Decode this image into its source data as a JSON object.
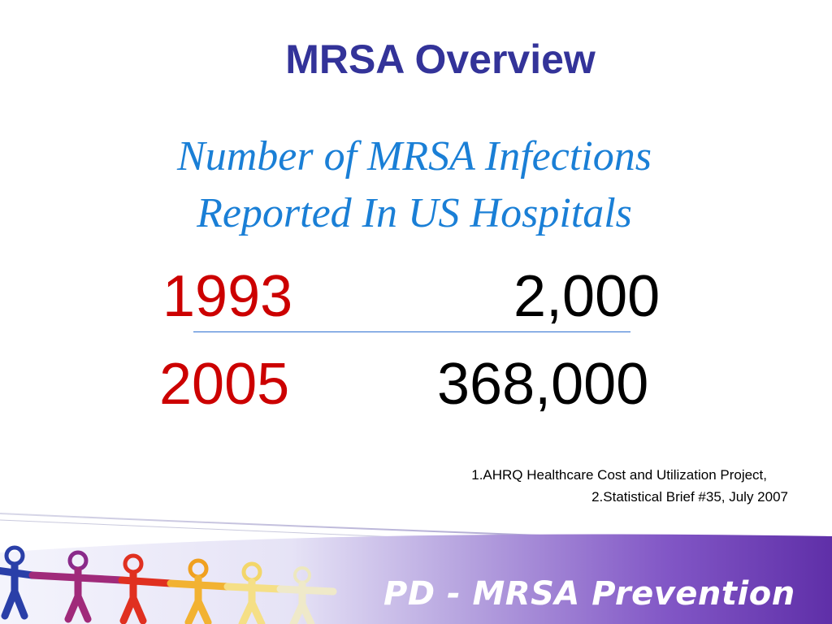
{
  "slide": {
    "title": "MRSA Overview",
    "subtitle_line1": "Number of MRSA Infections",
    "subtitle_line2": "Reported In US Hospitals"
  },
  "infection_table": [
    {
      "year": "1993",
      "count": "2,000"
    },
    {
      "year": "2005",
      "count": "368,000"
    }
  ],
  "sources": {
    "line1": "1.AHRQ Healthcare Cost and Utilization Project,",
    "line2": "2.Statistical Brief #35, July 2007"
  },
  "footer": {
    "brand": "PD - MRSA Prevention",
    "logo_icon": "paper-people-chain-logo"
  },
  "colors": {
    "title": "#333399",
    "subtitle": "#1a7fd6",
    "year": "#cc0000",
    "count": "#000000",
    "divider": "#2b6fd0",
    "banner_start": "#eef0fb",
    "banner_end": "#6a3fb0"
  }
}
